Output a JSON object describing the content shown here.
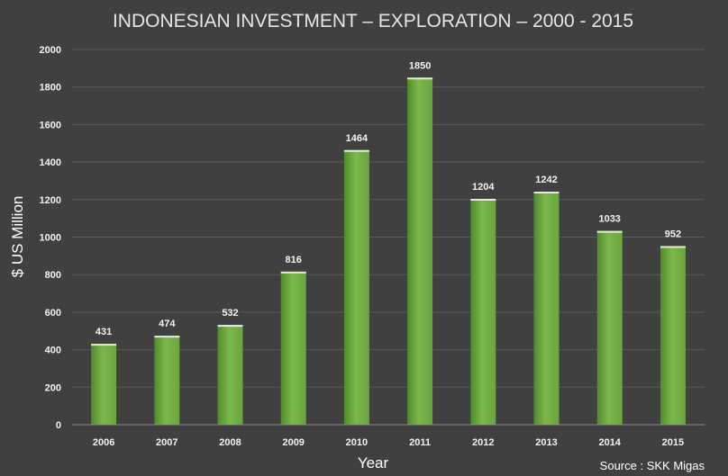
{
  "chart_data": {
    "type": "bar",
    "title": "INDONESIAN INVESTMENT – EXPLORATION – 2000 - 2015",
    "xlabel": "Year",
    "ylabel": "$ US Million",
    "categories": [
      "2006",
      "2007",
      "2008",
      "2009",
      "2010",
      "2011",
      "2012",
      "2013",
      "2014",
      "2015"
    ],
    "series": [
      {
        "values": [
          431,
          474,
          532,
          816,
          1464,
          1850,
          1204,
          1242,
          1033,
          952
        ]
      }
    ],
    "data_labels": [
      "431",
      "474",
      "532",
      "816",
      "1464",
      "1850",
      "1204",
      "1242",
      "1033",
      "952"
    ],
    "ylim": [
      0,
      2000
    ],
    "yticks": [
      0,
      200,
      400,
      600,
      800,
      1000,
      1200,
      1400,
      1600,
      1800,
      2000
    ],
    "grid": true,
    "legend": "none",
    "source_note": "Source : SKK Migas",
    "colors": {
      "background": "#404040",
      "bar": "#6aa43e",
      "bar_light": "#7cb84c",
      "bar_dark": "#4f8a2c",
      "gridline": "#5a5a5a",
      "axis": "#8c8c8c"
    }
  }
}
